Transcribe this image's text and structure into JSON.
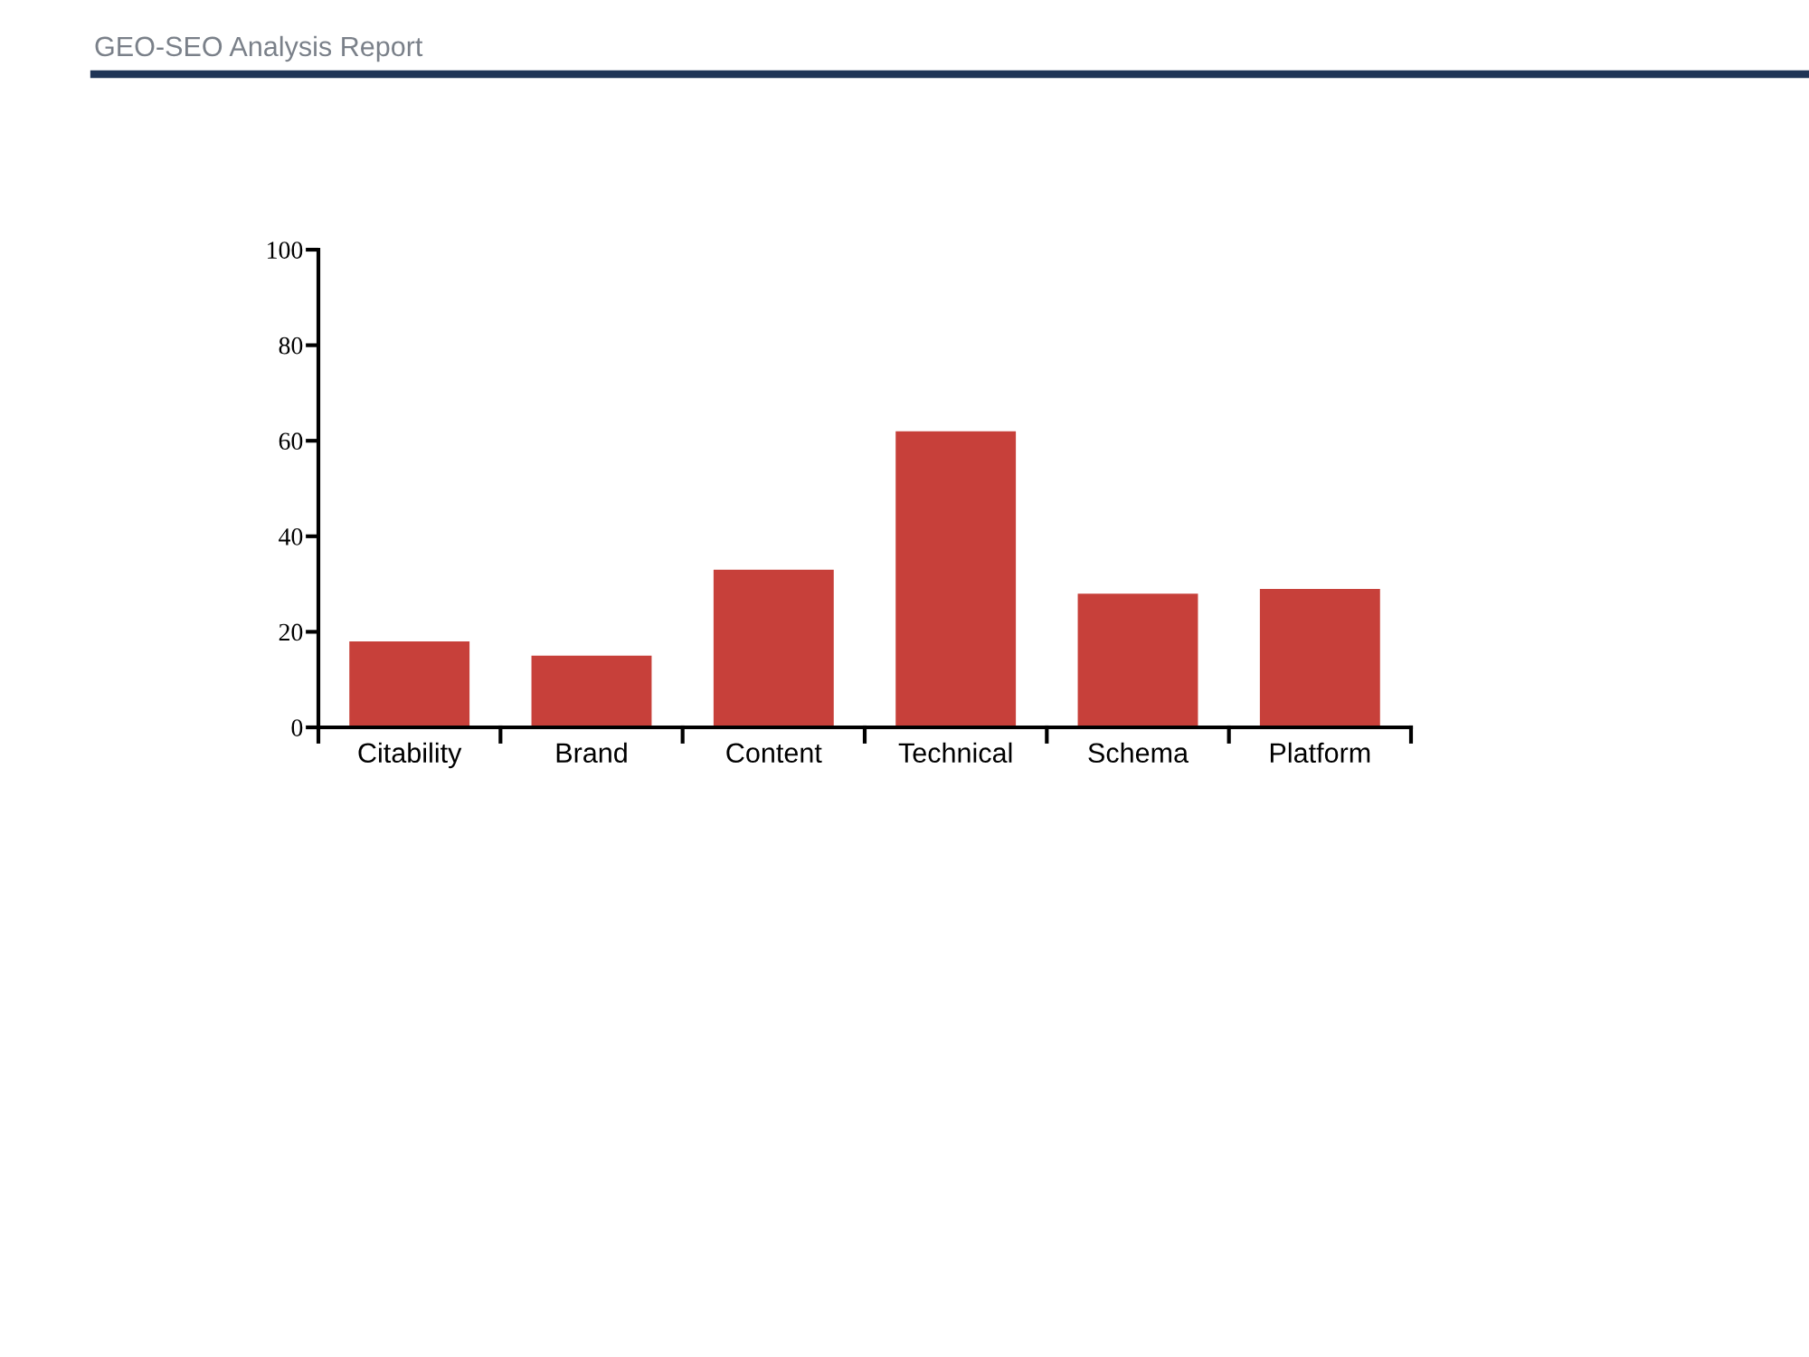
{
  "chart_data": {
    "type": "bar",
    "title": "GEO-SEO Analysis Report",
    "categories": [
      "Citability",
      "Brand",
      "Content",
      "Technical",
      "Schema",
      "Platform"
    ],
    "values": [
      18,
      15,
      33,
      62,
      28,
      29
    ],
    "color": "#c7403a",
    "ylim": [
      0,
      100
    ],
    "yticks": [
      0,
      20,
      40,
      60,
      80,
      100
    ],
    "grid": false,
    "legend": false
  }
}
